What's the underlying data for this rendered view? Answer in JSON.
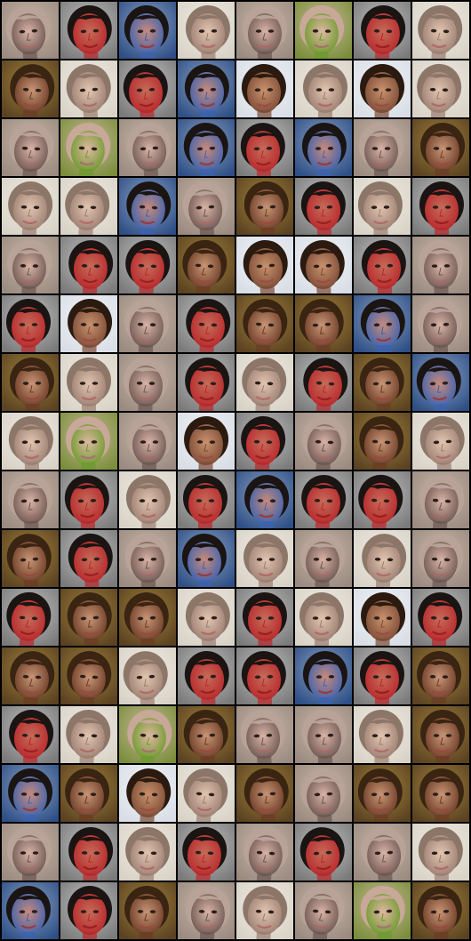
{
  "grid": {
    "rows": 16,
    "cols": 8,
    "background": "#000000",
    "palettes": {
      "A": {
        "bg": "#9a8a80",
        "bg2": "#c8b8a8",
        "skin": "#d9b3a6",
        "hair": "#b9a399",
        "accent": "#6a5550",
        "mouth": "#a86a6a"
      },
      "B": {
        "bg": "#7a7a7a",
        "bg2": "#bfc0c2",
        "skin": "#c46c5a",
        "hair": "#1a1412",
        "accent": "#b8262a",
        "mouth": "#9a2020"
      },
      "C": {
        "bg": "#d8d2c6",
        "bg2": "#f0ece4",
        "skin": "#e2c5b0",
        "hair": "#8c7668",
        "accent": "#9a7d70",
        "mouth": "#b06a68"
      },
      "D": {
        "bg": "#5a4222",
        "bg2": "#a0813a",
        "skin": "#c89576",
        "hair": "#3a2412",
        "accent": "#6a3a24",
        "mouth": "#9a4a40"
      },
      "E": {
        "bg": "#2e4f86",
        "bg2": "#8aa0c0",
        "skin": "#c98a7a",
        "hair": "#1a1412",
        "accent": "#3a62b0",
        "mouth": "#9a3a3a"
      },
      "F": {
        "bg": "#7a8e3a",
        "bg2": "#c8b89a",
        "skin": "#e0b7a4",
        "hair": "#c8a898",
        "accent": "#6a9a2a",
        "mouth": "#a87070"
      },
      "G": {
        "bg": "#d8dde6",
        "bg2": "#f2f4f6",
        "skin": "#c9926e",
        "hair": "#2a1a10",
        "accent": "#7a4a34",
        "mouth": "#a04a44"
      }
    },
    "tiles": [
      "A",
      "B",
      "E",
      "C",
      "A",
      "F",
      "B",
      "C",
      "D",
      "C",
      "B",
      "E",
      "G",
      "C",
      "G",
      "C",
      "A",
      "F",
      "A",
      "E",
      "B",
      "E",
      "A",
      "D",
      "C",
      "C",
      "E",
      "A",
      "D",
      "B",
      "C",
      "B",
      "A",
      "B",
      "B",
      "D",
      "G",
      "G",
      "B",
      "A",
      "B",
      "G",
      "A",
      "B",
      "D",
      "D",
      "E",
      "A",
      "D",
      "C",
      "A",
      "B",
      "C",
      "B",
      "D",
      "E",
      "C",
      "F",
      "A",
      "G",
      "B",
      "A",
      "D",
      "C",
      "A",
      "B",
      "C",
      "B",
      "E",
      "B",
      "B",
      "A",
      "D",
      "B",
      "A",
      "E",
      "C",
      "A",
      "C",
      "A",
      "B",
      "D",
      "D",
      "C",
      "B",
      "C",
      "G",
      "B",
      "D",
      "D",
      "C",
      "B",
      "B",
      "E",
      "B",
      "D",
      "B",
      "C",
      "F",
      "D",
      "A",
      "A",
      "C",
      "D",
      "E",
      "D",
      "G",
      "C",
      "D",
      "A",
      "D",
      "D",
      "A",
      "B",
      "C",
      "B",
      "A",
      "B",
      "A",
      "C",
      "E",
      "B",
      "D",
      "A",
      "C",
      "A",
      "F",
      "D"
    ]
  }
}
